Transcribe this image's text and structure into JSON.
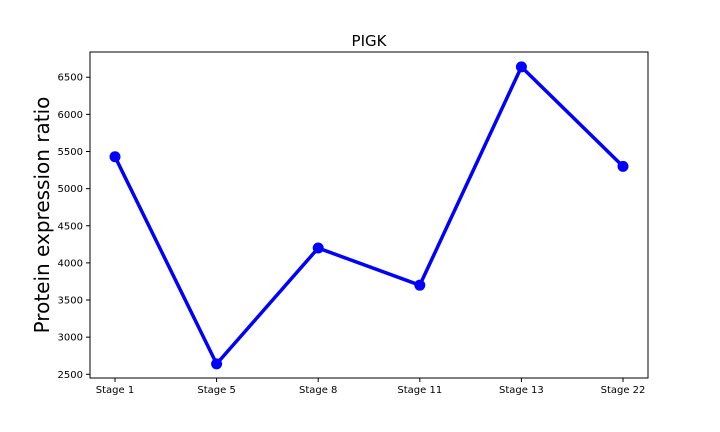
{
  "chart_data": {
    "type": "line",
    "title": "PIGK",
    "xlabel": "",
    "ylabel": "Protein expression ratio",
    "categories": [
      "Stage 1",
      "Stage 5",
      "Stage 8",
      "Stage 11",
      "Stage 13",
      "Stage 22"
    ],
    "series": [
      {
        "values": [
          5430,
          2640,
          4200,
          3700,
          6640,
          5300
        ]
      }
    ],
    "ylim": [
      2450,
      6840
    ],
    "yticks": [
      2500,
      3000,
      3500,
      4000,
      4500,
      5000,
      5500,
      6000,
      6500
    ],
    "grid": false,
    "colors": {
      "line": "#0000ff",
      "marker": "#0000ff",
      "axes": "#000000"
    },
    "markers": "circle"
  }
}
